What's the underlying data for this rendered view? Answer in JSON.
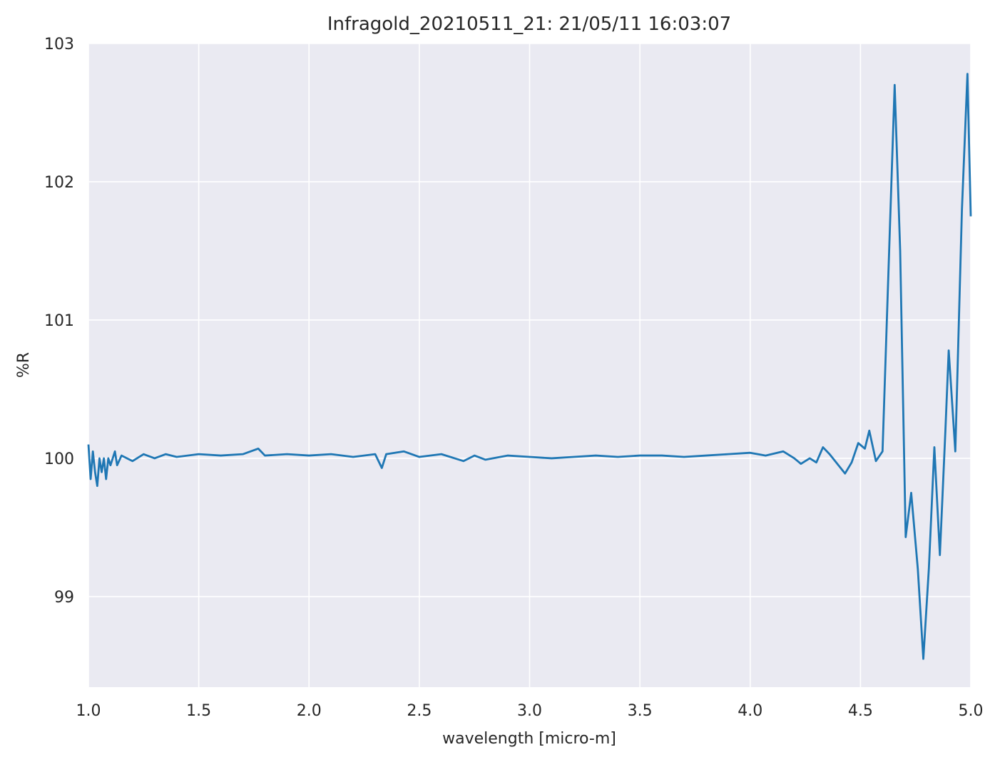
{
  "chart_data": {
    "type": "line",
    "title": "Infragold_20210511_21:  21/05/11 16:03:07",
    "xlabel": "wavelength [micro-m]",
    "ylabel": "%R",
    "x": [
      1.0,
      1.01,
      1.02,
      1.03,
      1.04,
      1.05,
      1.06,
      1.07,
      1.08,
      1.09,
      1.1,
      1.12,
      1.13,
      1.15,
      1.2,
      1.25,
      1.3,
      1.35,
      1.4,
      1.5,
      1.6,
      1.7,
      1.77,
      1.8,
      1.9,
      2.0,
      2.1,
      2.2,
      2.3,
      2.33,
      2.35,
      2.43,
      2.5,
      2.6,
      2.7,
      2.75,
      2.8,
      2.9,
      3.0,
      3.1,
      3.2,
      3.3,
      3.4,
      3.5,
      3.6,
      3.7,
      3.8,
      3.9,
      4.0,
      4.07,
      4.15,
      4.2,
      4.23,
      4.27,
      4.3,
      4.33,
      4.36,
      4.4,
      4.43,
      4.46,
      4.49,
      4.52,
      4.54,
      4.57,
      4.6,
      4.63,
      4.655,
      4.68,
      4.705,
      4.73,
      4.76,
      4.785,
      4.81,
      4.835,
      4.86,
      4.885,
      4.9,
      4.93,
      4.96,
      4.985,
      5.0
    ],
    "series": [
      {
        "name": "%R",
        "color": "#1f77b4",
        "values": [
          100.1,
          99.85,
          100.05,
          99.9,
          99.8,
          100.0,
          99.9,
          100.0,
          99.85,
          100.0,
          99.95,
          100.05,
          99.95,
          100.02,
          99.98,
          100.03,
          100.0,
          100.03,
          100.01,
          100.03,
          100.02,
          100.03,
          100.07,
          100.02,
          100.03,
          100.02,
          100.03,
          100.01,
          100.03,
          99.93,
          100.03,
          100.05,
          100.01,
          100.03,
          99.98,
          100.02,
          99.99,
          100.02,
          100.01,
          100.0,
          100.01,
          100.02,
          100.01,
          100.02,
          100.02,
          100.01,
          100.02,
          100.03,
          100.04,
          100.02,
          100.05,
          100.0,
          99.96,
          100.0,
          99.97,
          100.08,
          100.03,
          99.95,
          99.89,
          99.97,
          100.11,
          100.07,
          100.2,
          99.98,
          100.05,
          101.5,
          102.7,
          101.5,
          99.43,
          99.75,
          99.2,
          98.55,
          99.2,
          100.08,
          99.3,
          100.2,
          100.78,
          100.05,
          101.8,
          102.78,
          101.75
        ]
      }
    ],
    "xlim": [
      1.0,
      5.0
    ],
    "ylim": [
      98.345,
      103
    ],
    "xticks": [
      {
        "value": 1,
        "label": "1.0"
      },
      1.5,
      {
        "value": 2,
        "label": "2.0"
      },
      2.5,
      {
        "value": 3,
        "label": "3.0"
      },
      3.5,
      {
        "value": 4,
        "label": "4.0"
      },
      4.5,
      {
        "value": 5,
        "label": "5.0"
      }
    ],
    "yticks": [
      99,
      100,
      101,
      102,
      103
    ],
    "grid": true
  }
}
